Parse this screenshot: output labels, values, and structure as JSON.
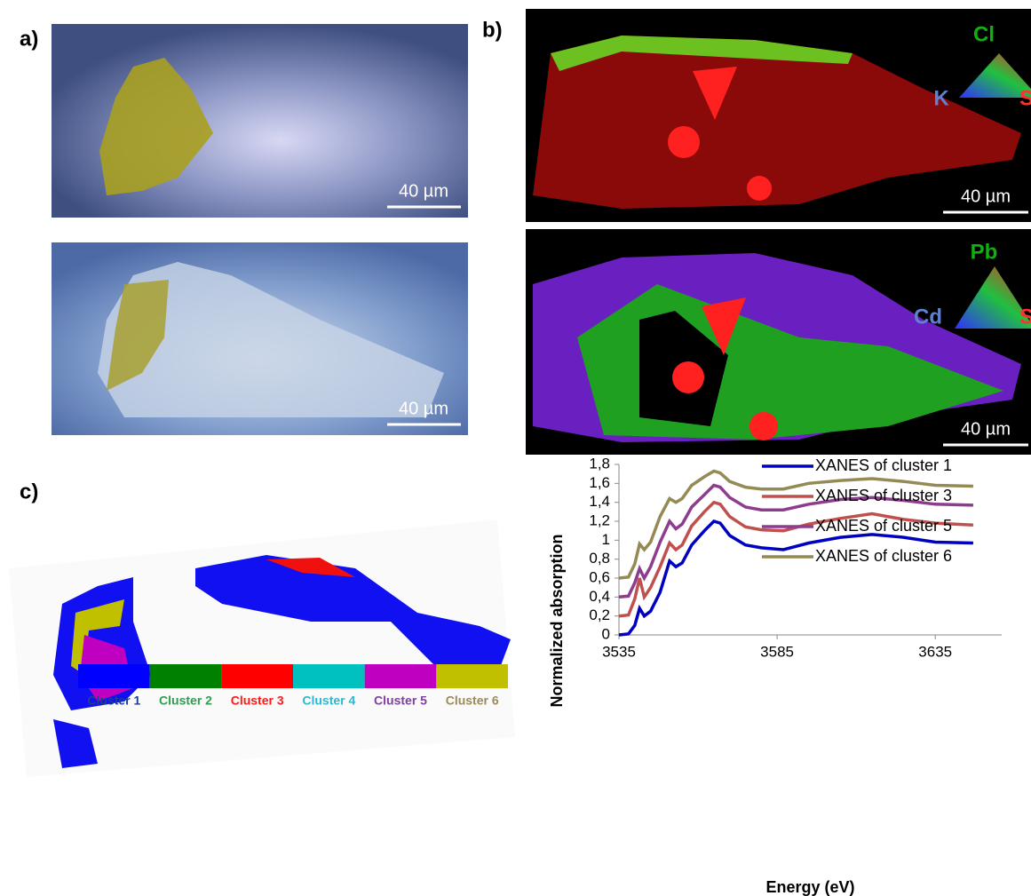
{
  "panels": {
    "label_a": "a)",
    "label_b": "b)",
    "label_c": "c)",
    "scale_a1": "40 µm",
    "scale_a2": "40 µm",
    "scale_b1": "40 µm",
    "scale_b2": "40 µm",
    "b1_top": "Cl",
    "b1_left": "K",
    "b1_right": "S",
    "b2_top": "Pb",
    "b2_left": "Cd",
    "b2_right": "S",
    "clusters": [
      {
        "label": "Cluster 1",
        "color": "#0000ff",
        "text_color": "#1f3f8f"
      },
      {
        "label": "Cluster 2",
        "color": "#008000",
        "text_color": "#2e9e4e"
      },
      {
        "label": "Cluster 3",
        "color": "#ff0000",
        "text_color": "#ff1a1a"
      },
      {
        "label": "Cluster 4",
        "color": "#00c0c0",
        "text_color": "#2fb7d0"
      },
      {
        "label": "Cluster 5",
        "color": "#c000c0",
        "text_color": "#8040a0"
      },
      {
        "label": "Cluster 6",
        "color": "#c0c000",
        "text_color": "#9a8a5a"
      }
    ]
  },
  "chart_data": {
    "type": "line",
    "xlabel": "Energy (eV)",
    "ylabel": "Normalized absorption",
    "x": [
      3535,
      3538,
      3540,
      3541.5,
      3543,
      3545,
      3548,
      3551,
      3553,
      3555,
      3558,
      3562,
      3565,
      3567,
      3570,
      3575,
      3580,
      3587,
      3595,
      3605,
      3615,
      3625,
      3635,
      3647
    ],
    "series": [
      {
        "name": "XANES of cluster 1",
        "color": "#0000c0",
        "values": [
          0,
          0.01,
          0.1,
          0.28,
          0.2,
          0.25,
          0.45,
          0.78,
          0.72,
          0.76,
          0.95,
          1.1,
          1.2,
          1.18,
          1.05,
          0.95,
          0.92,
          0.9,
          0.97,
          1.03,
          1.06,
          1.03,
          0.98,
          0.97
        ]
      },
      {
        "name": "XANES of cluster 3",
        "color": "#c0504d",
        "values": [
          0.2,
          0.21,
          0.38,
          0.6,
          0.4,
          0.5,
          0.72,
          0.97,
          0.9,
          0.95,
          1.15,
          1.3,
          1.4,
          1.38,
          1.25,
          1.14,
          1.11,
          1.1,
          1.17,
          1.23,
          1.28,
          1.22,
          1.18,
          1.16
        ]
      },
      {
        "name": "XANES of cluster 5",
        "color": "#8e3c8e",
        "values": [
          0.4,
          0.41,
          0.55,
          0.7,
          0.6,
          0.72,
          0.98,
          1.2,
          1.12,
          1.17,
          1.35,
          1.48,
          1.58,
          1.56,
          1.45,
          1.35,
          1.32,
          1.32,
          1.38,
          1.43,
          1.45,
          1.42,
          1.38,
          1.37
        ]
      },
      {
        "name": "XANES of cluster 6",
        "color": "#948a54",
        "values": [
          0.6,
          0.61,
          0.75,
          0.96,
          0.9,
          0.98,
          1.25,
          1.44,
          1.4,
          1.44,
          1.58,
          1.67,
          1.73,
          1.71,
          1.62,
          1.56,
          1.54,
          1.54,
          1.6,
          1.63,
          1.65,
          1.62,
          1.58,
          1.57
        ]
      }
    ],
    "xlim": [
      3535,
      3656
    ],
    "ylim": [
      0,
      1.8
    ],
    "xticks": [
      3535,
      3585,
      3635
    ],
    "yticks": [
      0,
      {
        "value": 0.2,
        "label": "0,2"
      },
      {
        "value": 0.4,
        "label": "0,4"
      },
      {
        "value": 0.6,
        "label": "0,6"
      },
      {
        "value": 0.8,
        "label": "0,8"
      },
      1,
      {
        "value": 1.2,
        "label": "1,2"
      },
      {
        "value": 1.4,
        "label": "1,4"
      },
      {
        "value": 1.6,
        "label": "1,6"
      },
      {
        "value": 1.8,
        "label": "1,8"
      }
    ],
    "grid": false,
    "legend": "lower right"
  }
}
